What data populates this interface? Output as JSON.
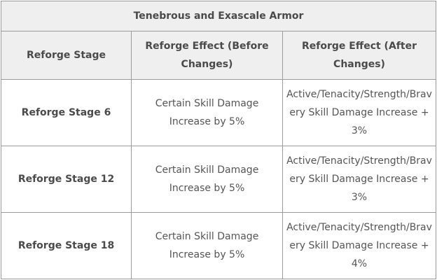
{
  "table": {
    "title": "Tenebrous and Exascale Armor",
    "headers": [
      "Reforge Stage",
      "Reforge Effect (Before Changes)",
      "Reforge Effect (After Changes)"
    ],
    "rows": [
      {
        "stage": "Reforge Stage 6",
        "before": "Certain Skill Damage Increase by 5%",
        "after": "Active/Tenacity/Strength/Bravery Skill Damage Increase +3%"
      },
      {
        "stage": "Reforge Stage 12",
        "before": "Certain Skill Damage Increase by 5%",
        "after": "Active/Tenacity/Strength/Bravery Skill Damage Increase +3%"
      },
      {
        "stage": "Reforge Stage 18",
        "before": "Certain Skill Damage Increase by 5%",
        "after": "Active/Tenacity/Strength/Bravery Skill Damage Increase +4%"
      }
    ]
  }
}
